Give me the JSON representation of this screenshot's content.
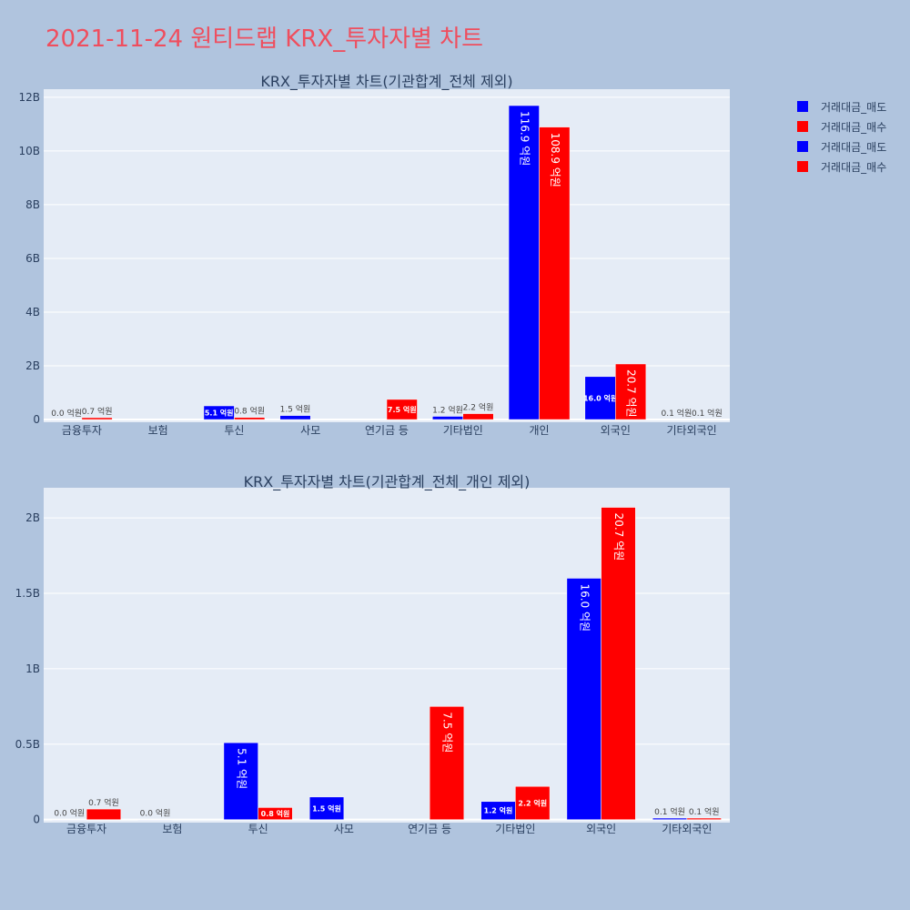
{
  "page_title": "2021-11-24 원티드랩 KRX_투자자별 차트",
  "legend": [
    {
      "label": "거래대금_매도",
      "color": "#0000ff"
    },
    {
      "label": "거래대금_매수",
      "color": "#ff0000"
    },
    {
      "label": "거래대금_매도",
      "color": "#0000ff"
    },
    {
      "label": "거래대금_매수",
      "color": "#ff0000"
    }
  ],
  "chart_data": [
    {
      "type": "bar",
      "title": "KRX_투자자별 차트(기관합계_전체 제외)",
      "categories": [
        "금융투자",
        "보험",
        "투신",
        "사모",
        "연기금 등",
        "기타법인",
        "개인",
        "외국인",
        "기타외국인"
      ],
      "series": [
        {
          "name": "거래대금_매도",
          "color": "#0000ff",
          "values": [
            0.0,
            null,
            0.51,
            0.15,
            null,
            0.12,
            11.69,
            1.6,
            0.01
          ],
          "labels": [
            "0.0 억원",
            "",
            "5.1 억원",
            "1.5 억원",
            "",
            "1.2 억원",
            "116.9 억원",
            "16.0 억원",
            "0.1 억원"
          ]
        },
        {
          "name": "거래대금_매수",
          "color": "#ff0000",
          "values": [
            0.07,
            null,
            0.08,
            null,
            0.75,
            0.22,
            10.89,
            2.07,
            0.01
          ],
          "labels": [
            "0.7 억원",
            "",
            "0.8 억원",
            "",
            "7.5 억원",
            "2.2 억원",
            "108.9 억원",
            "20.7 억원",
            "0.1 억원"
          ]
        }
      ],
      "yticks": [
        0,
        2,
        4,
        6,
        8,
        10,
        12
      ],
      "yticklabels": [
        "0",
        "2B",
        "4B",
        "6B",
        "8B",
        "10B",
        "12B"
      ],
      "ylim": [
        -0.1,
        12.3
      ],
      "grid": true
    },
    {
      "type": "bar",
      "title": "KRX_투자자별 차트(기관합계_전체_개인 제외)",
      "categories": [
        "금융투자",
        "보험",
        "투신",
        "사모",
        "연기금 등",
        "기타법인",
        "외국인",
        "기타외국인"
      ],
      "series": [
        {
          "name": "거래대금_매도",
          "color": "#0000ff",
          "values": [
            0.0,
            0.0,
            0.51,
            0.15,
            null,
            0.12,
            1.6,
            0.01
          ],
          "labels": [
            "0.0 억원",
            "0.0 억원",
            "5.1 억원",
            "1.5 억원",
            "",
            "1.2 억원",
            "16.0 억원",
            "0.1 억원"
          ]
        },
        {
          "name": "거래대금_매수",
          "color": "#ff0000",
          "values": [
            0.07,
            null,
            0.08,
            null,
            0.75,
            0.22,
            2.07,
            0.01
          ],
          "labels": [
            "0.7 억원",
            "",
            "0.8 억원",
            "",
            "7.5 억원",
            "2.2 억원",
            "20.7 억원",
            "0.1 억원"
          ]
        }
      ],
      "yticks": [
        0,
        0.5,
        1,
        1.5,
        2
      ],
      "yticklabels": [
        "0",
        "0.5B",
        "1B",
        "1.5B",
        "2B"
      ],
      "ylim": [
        -0.02,
        2.2
      ],
      "grid": true
    }
  ]
}
